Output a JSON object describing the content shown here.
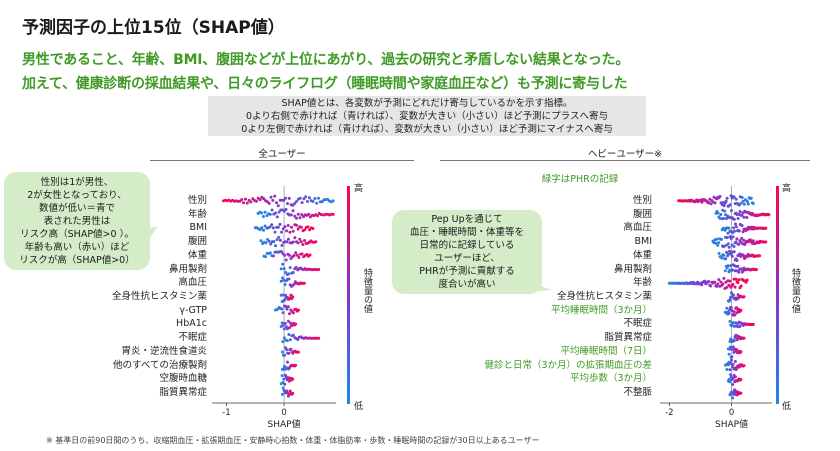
{
  "title": "予測因子の上位15位（SHAP値）",
  "headline": [
    "男性であること、年齢、BMI、腹囲などが上位にあがり、過去の研究と矛盾しない結果となった。",
    "加えて、健康診断の採血結果や、日々のライフログ（睡眠時間や家庭血圧など）も予測に寄与した"
  ],
  "explain": [
    "SHAP値とは、各変数が予測にどれだけ寄与しているかを示す指標。",
    "0より右側で赤ければ（青ければ）、変数が大きい（小さい）ほど予測にプラスへ寄与",
    "0より左側で赤ければ（青ければ）、変数が大きい（小さい）ほど予測にマイナスへ寄与"
  ],
  "left_panel": {
    "title": "全ユーザー",
    "callout": [
      "性別は1が男性、",
      "2が女性となっており、",
      "数値が低い＝青で",
      "表された男性は",
      "リスク高（SHAP値>0 ）。",
      "年齢も高い（赤い）ほど",
      "リスクが高（SHAP値>0）"
    ]
  },
  "right_panel": {
    "title": "ヘビーユーザー※",
    "subtitle": "緑字はPHRの記録",
    "callout": [
      "Pep Upを通じて",
      "血圧・睡眠時間・体重等を",
      "日常的に記録している",
      "ユーザーほど、",
      "PHRが予測に貢献する",
      "度合いが高い"
    ]
  },
  "colorbar": {
    "high": "高",
    "low": "低",
    "label": "特徴量の値"
  },
  "footnote": "※ 基準日の前90日間のうち、収縮期血圧・拡張期血圧・安静時心拍数・体重・体脂肪率・歩数・睡眠時間の記録が30日以上あるユーザー",
  "colors": {
    "green": "#3f9a26",
    "low": "#1e88e5",
    "high": "#ff0052"
  },
  "chart_data": [
    {
      "type": "scatter",
      "title": "全ユーザー",
      "xlabel": "SHAP値",
      "x_ticks": [
        -1,
        0
      ],
      "xlim": [
        -1.25,
        0.9
      ],
      "features": [
        "性別",
        "年齢",
        "BMI",
        "腹囲",
        "体重",
        "鼻用製剤",
        "高血圧",
        "全身性抗ヒスタミン薬",
        "γ-GTP",
        "HbA1c",
        "不眠症",
        "胃炎・逆流性食道炎",
        "他のすべての治療製剤",
        "空腹時血糖",
        "脂質異常症"
      ],
      "phr_features": [],
      "shap_ranges": [
        [
          -1.05,
          0.85
        ],
        [
          -0.45,
          0.85
        ],
        [
          -0.5,
          0.5
        ],
        [
          -0.4,
          0.55
        ],
        [
          -0.35,
          0.45
        ],
        [
          -0.05,
          0.6
        ],
        [
          -0.05,
          0.35
        ],
        [
          -0.05,
          0.15
        ],
        [
          -0.15,
          0.25
        ],
        [
          -0.05,
          0.2
        ],
        [
          -0.02,
          0.6
        ],
        [
          -0.03,
          0.25
        ],
        [
          -0.03,
          0.2
        ],
        [
          -0.05,
          0.15
        ],
        [
          -0.03,
          0.15
        ]
      ]
    },
    {
      "type": "scatter",
      "title": "ヘビーユーザー※",
      "xlabel": "SHAP値",
      "x_ticks": [
        -2,
        0
      ],
      "xlim": [
        -2.3,
        1.3
      ],
      "features": [
        "性別",
        "腹囲",
        "高血圧",
        "BMI",
        "体重",
        "鼻用製剤",
        "年齢",
        "全身性抗ヒスタミン薬",
        "平均睡眠時間（3か月）",
        "不眠症",
        "脂質異常症",
        "平均睡眠時間（7日）",
        "健診と日常（3か月）の拡張期血圧の差",
        "平均歩数（3か月）",
        "不整脈"
      ],
      "phr_features": [
        "平均睡眠時間（3か月）",
        "平均睡眠時間（7日）",
        "健診と日常（3か月）の拡張期血圧の差",
        "平均歩数（3か月）"
      ],
      "shap_ranges": [
        [
          -1.7,
          0.7
        ],
        [
          -0.5,
          1.2
        ],
        [
          -0.3,
          1.1
        ],
        [
          -0.6,
          1.1
        ],
        [
          -0.4,
          0.9
        ],
        [
          -0.2,
          0.8
        ],
        [
          -2.0,
          0.5
        ],
        [
          -0.1,
          0.4
        ],
        [
          -0.2,
          0.3
        ],
        [
          -0.05,
          0.7
        ],
        [
          -0.05,
          0.4
        ],
        [
          -0.1,
          0.3
        ],
        [
          -0.2,
          0.4
        ],
        [
          -0.1,
          0.3
        ],
        [
          -0.05,
          0.3
        ]
      ]
    }
  ]
}
